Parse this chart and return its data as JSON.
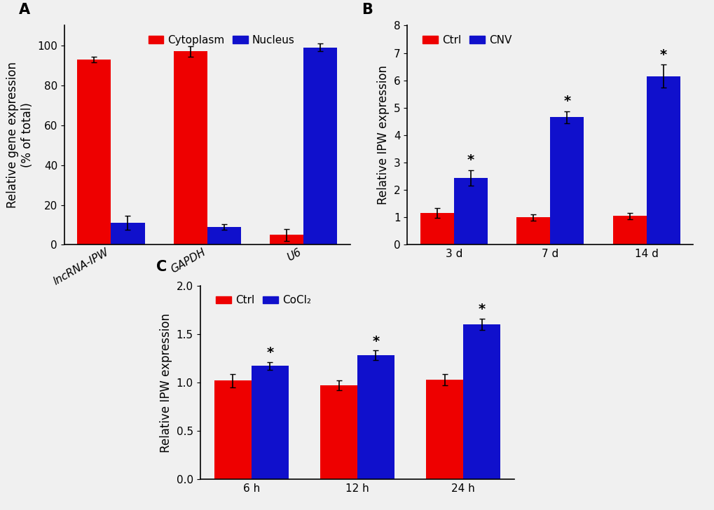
{
  "panel_A": {
    "categories": [
      "lncRNA-IPW",
      "GAPDH",
      "U6"
    ],
    "cytoplasm": [
      93,
      97,
      5
    ],
    "nucleus": [
      11,
      9,
      99
    ],
    "cytoplasm_err": [
      1.5,
      2.5,
      3.0
    ],
    "nucleus_err": [
      3.5,
      1.5,
      2.0
    ],
    "ylabel": "Relative gene expression\n(% of total)",
    "ylim": [
      0,
      110
    ],
    "yticks": [
      0,
      20,
      40,
      60,
      80,
      100
    ],
    "label": "A"
  },
  "panel_B": {
    "categories": [
      "3 d",
      "7 d",
      "14 d"
    ],
    "ctrl": [
      1.15,
      1.0,
      1.05
    ],
    "cnv": [
      2.45,
      4.65,
      6.15
    ],
    "ctrl_err": [
      0.18,
      0.12,
      0.12
    ],
    "cnv_err": [
      0.28,
      0.22,
      0.42
    ],
    "ylabel": "Relative IPW expression",
    "ylim": [
      0,
      8
    ],
    "yticks": [
      0,
      1,
      2,
      3,
      4,
      5,
      6,
      7,
      8
    ],
    "label": "B",
    "stars": [
      true,
      true,
      true
    ]
  },
  "panel_C": {
    "categories": [
      "6 h",
      "12 h",
      "24 h"
    ],
    "ctrl": [
      1.02,
      0.97,
      1.03
    ],
    "cocl2": [
      1.17,
      1.28,
      1.6
    ],
    "ctrl_err": [
      0.07,
      0.05,
      0.06
    ],
    "cocl2_err": [
      0.04,
      0.05,
      0.06
    ],
    "ylabel": "Relative IPW expression",
    "ylim": [
      0,
      2.0
    ],
    "yticks": [
      0,
      0.5,
      1.0,
      1.5,
      2.0
    ],
    "label": "C",
    "stars": [
      true,
      true,
      true
    ]
  },
  "red_color": "#EE0000",
  "blue_color": "#1010CC",
  "bar_width": 0.35,
  "bg_color": "#F0F0F0",
  "label_fontsize": 12,
  "tick_fontsize": 11,
  "legend_fontsize": 11,
  "panel_label_fontsize": 15
}
